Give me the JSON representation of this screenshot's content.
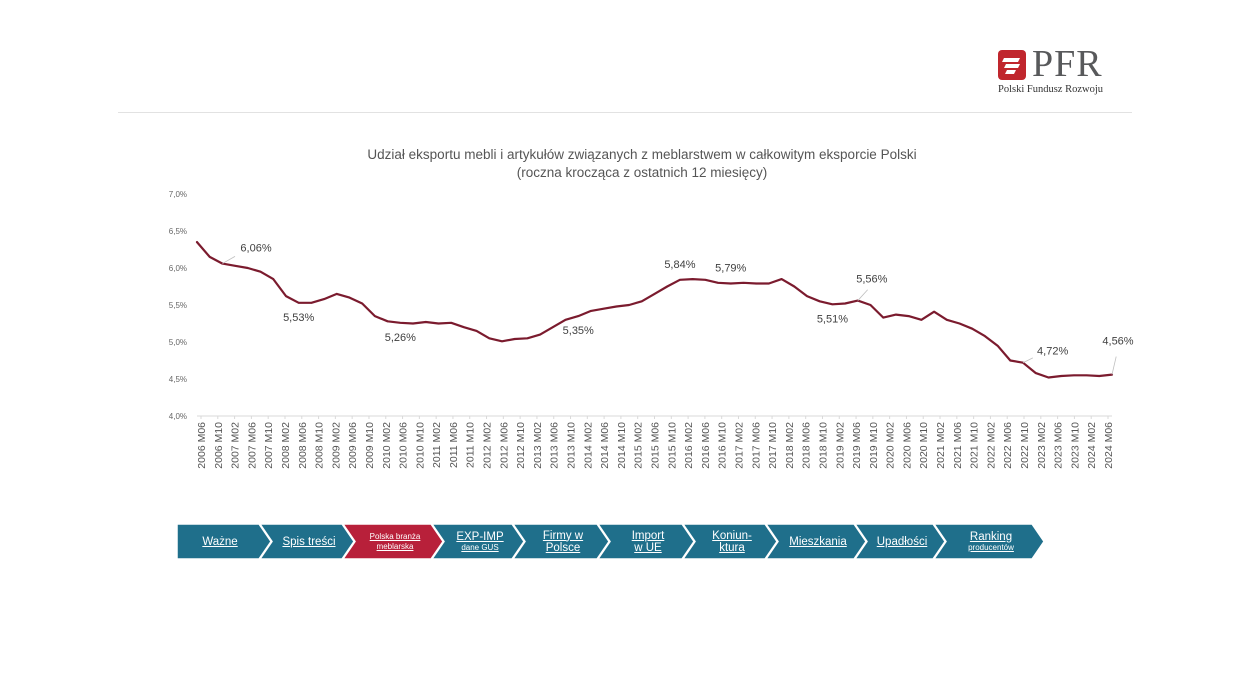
{
  "brand": {
    "name": "PFR",
    "tagline": "Polski Fundusz Rozwoju",
    "logo_color": "#c0262d"
  },
  "chart_data": {
    "type": "line",
    "title": "Udział eksportu mebli i artykułów związanych z meblarstwem w  całkowitym eksporcie Polski",
    "subtitle": "(roczna krocząca z ostatnich 12 miesięcy)",
    "ylim": [
      4.0,
      7.0
    ],
    "yticks": [
      "4,0%",
      "4,5%",
      "5,0%",
      "5,5%",
      "6,0%",
      "6,5%",
      "7,0%"
    ],
    "xticks": [
      "2006 M06",
      "2006 M10",
      "2007 M02",
      "2007 M06",
      "2007 M10",
      "2008 M02",
      "2008 M06",
      "2008 M10",
      "2009 M02",
      "2009 M06",
      "2009 M10",
      "2010 M02",
      "2010 M06",
      "2010 M10",
      "2011 M02",
      "2011 M06",
      "2011 M10",
      "2012 M02",
      "2012 M06",
      "2012 M10",
      "2013 M02",
      "2013 M06",
      "2013 M10",
      "2014 M02",
      "2014 M06",
      "2014 M10",
      "2015 M02",
      "2015 M06",
      "2015 M10",
      "2016 M02",
      "2016 M06",
      "2016 M10",
      "2017 M02",
      "2017 M06",
      "2017 M10",
      "2018 M02",
      "2018 M06",
      "2018 M10",
      "2019 M02",
      "2019 M06",
      "2019 M10",
      "2020 M02",
      "2020 M06",
      "2020 M10",
      "2021 M02",
      "2021 M06",
      "2021 M10",
      "2022 M02",
      "2022 M06",
      "2022 M10",
      "2023 M02",
      "2023 M06",
      "2023 M10",
      "2024 M02",
      "2024 M06"
    ],
    "grid": false,
    "line_color": "#7b1b2e",
    "series": [
      {
        "values": [
          6.35,
          6.15,
          6.06,
          6.03,
          6.0,
          5.95,
          5.85,
          5.62,
          5.53,
          5.53,
          5.58,
          5.65,
          5.6,
          5.52,
          5.35,
          5.28,
          5.26,
          5.25,
          5.27,
          5.25,
          5.26,
          5.2,
          5.15,
          5.05,
          5.01,
          5.04,
          5.05,
          5.1,
          5.2,
          5.3,
          5.35,
          5.42,
          5.45,
          5.48,
          5.5,
          5.55,
          5.65,
          5.75,
          5.84,
          5.85,
          5.84,
          5.8,
          5.79,
          5.8,
          5.79,
          5.79,
          5.85,
          5.75,
          5.62,
          5.55,
          5.51,
          5.52,
          5.56,
          5.5,
          5.33,
          5.37,
          5.35,
          5.3,
          5.41,
          5.3,
          5.25,
          5.18,
          5.08,
          4.95,
          4.75,
          4.72,
          4.58,
          4.52,
          4.54,
          4.55,
          4.55,
          4.54,
          4.56
        ]
      }
    ],
    "annotations": [
      {
        "label": "6,06%",
        "index": 2
      },
      {
        "label": "5,53%",
        "index": 8
      },
      {
        "label": "5,26%",
        "index": 16
      },
      {
        "label": "5,35%",
        "index": 30
      },
      {
        "label": "5,84%",
        "index": 38
      },
      {
        "label": "5,79%",
        "index": 42
      },
      {
        "label": "5,51%",
        "index": 50
      },
      {
        "label": "5,56%",
        "index": 52
      },
      {
        "label": "4,72%",
        "index": 65
      },
      {
        "label": "4,56%",
        "index": 72
      }
    ]
  },
  "nav": {
    "items": [
      {
        "main": "Ważne",
        "sub": "",
        "active": false
      },
      {
        "main": "Spis treści",
        "sub": "",
        "active": false
      },
      {
        "main": "Polska branża",
        "sub": "meblarska",
        "active": true
      },
      {
        "main": "EXP-IMP",
        "sub": "dane GUS",
        "active": false
      },
      {
        "main": "Firmy w",
        "sub": "Polsce",
        "active": false
      },
      {
        "main": "Import",
        "sub": "w UE",
        "active": false
      },
      {
        "main": "Koniun-",
        "sub": "ktura",
        "active": false
      },
      {
        "main": "Mieszkania",
        "sub": "",
        "active": false
      },
      {
        "main": "Upadłości",
        "sub": "",
        "active": false
      },
      {
        "main": "Ranking",
        "sub": "producentów",
        "active": false
      }
    ],
    "color": "#1f6f8b",
    "active_color": "#b8203a"
  }
}
